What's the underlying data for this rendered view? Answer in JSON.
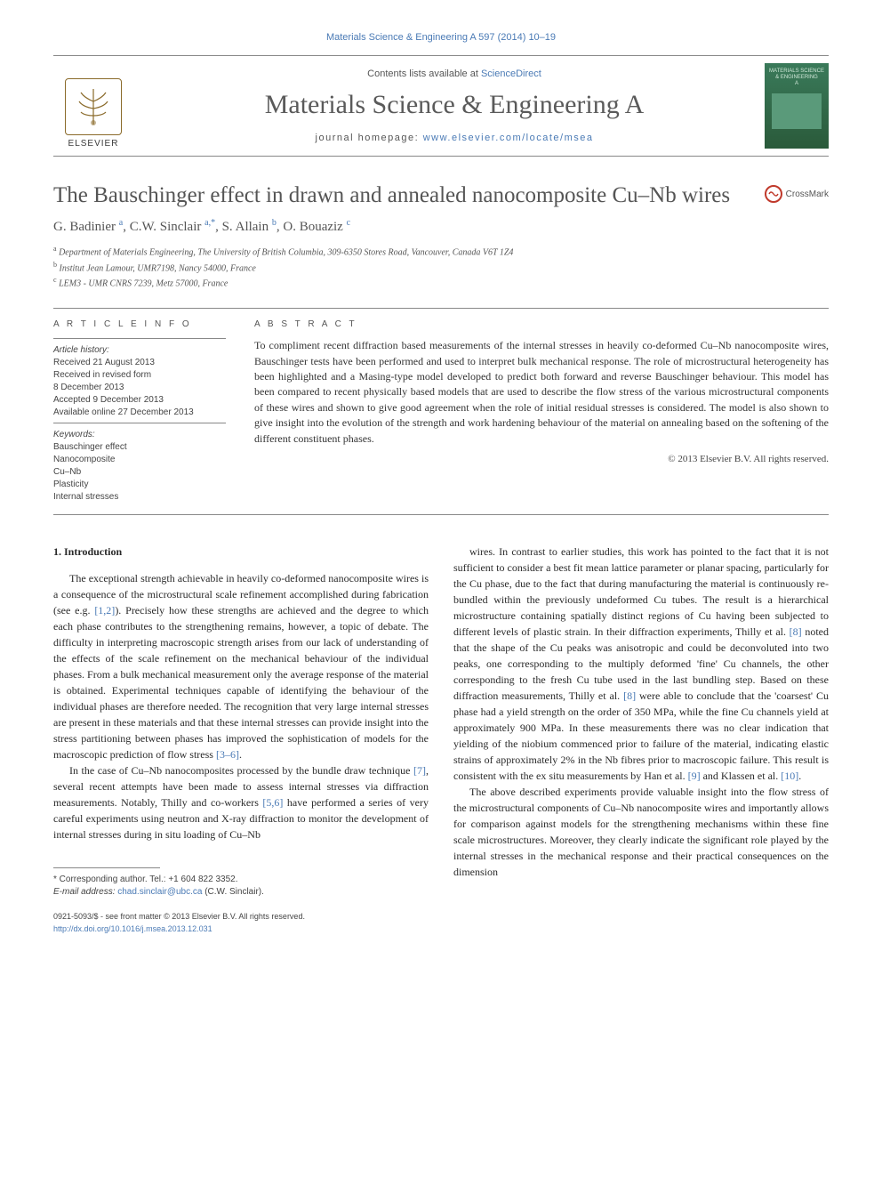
{
  "top_link": "Materials Science & Engineering A 597 (2014) 10–19",
  "header": {
    "contents_prefix": "Contents lists available at ",
    "contents_link": "ScienceDirect",
    "journal_name": "Materials Science & Engineering A",
    "homepage_prefix": "journal homepage: ",
    "homepage_link": "www.elsevier.com/locate/msea",
    "publisher": "ELSEVIER",
    "cover_text_top": "MATERIALS SCIENCE & ENGINEERING",
    "cover_text_sub": "A"
  },
  "crossmark_label": "CrossMark",
  "title": "The Bauschinger effect in drawn and annealed nanocomposite Cu–Nb wires",
  "authors_html": "G. Badinier <sup>a</sup>, C.W. Sinclair <sup>a,*</sup>, S. Allain <sup>b</sup>, O. Bouaziz <sup>c</sup>",
  "affiliations": [
    {
      "sup": "a",
      "text": "Department of Materials Engineering, The University of British Columbia, 309-6350 Stores Road, Vancouver, Canada V6T 1Z4"
    },
    {
      "sup": "b",
      "text": "Institut Jean Lamour, UMR7198, Nancy 54000, France"
    },
    {
      "sup": "c",
      "text": "LEM3 - UMR CNRS 7239, Metz 57000, France"
    }
  ],
  "info": {
    "heading": "A R T I C L E   I N F O",
    "history_label": "Article history:",
    "history": [
      "Received 21 August 2013",
      "Received in revised form",
      "8 December 2013",
      "Accepted 9 December 2013",
      "Available online 27 December 2013"
    ],
    "keywords_label": "Keywords:",
    "keywords": [
      "Bauschinger effect",
      "Nanocomposite",
      "Cu–Nb",
      "Plasticity",
      "Internal stresses"
    ]
  },
  "abstract": {
    "heading": "A B S T R A C T",
    "text": "To compliment recent diffraction based measurements of the internal stresses in heavily co-deformed Cu–Nb nanocomposite wires, Bauschinger tests have been performed and used to interpret bulk mechanical response. The role of microstructural heterogeneity has been highlighted and a Masing-type model developed to predict both forward and reverse Bauschinger behaviour. This model has been compared to recent physically based models that are used to describe the flow stress of the various microstructural components of these wires and shown to give good agreement when the role of initial residual stresses is considered. The model is also shown to give insight into the evolution of the strength and work hardening behaviour of the material on annealing based on the softening of the different constituent phases.",
    "copyright": "© 2013 Elsevier B.V. All rights reserved."
  },
  "body": {
    "section_heading": "1.  Introduction",
    "col1": [
      "The exceptional strength achievable in heavily co-deformed nanocomposite wires is a consequence of the microstructural scale refinement accomplished during fabrication (see e.g. <span class=\"ref\">[1,2]</span>). Precisely how these strengths are achieved and the degree to which each phase contributes to the strengthening remains, however, a topic of debate. The difficulty in interpreting macroscopic strength arises from our lack of understanding of the effects of the scale refinement on the mechanical behaviour of the individual phases. From a bulk mechanical measurement only the average response of the material is obtained. Experimental techniques capable of identifying the behaviour of the individual phases are therefore needed. The recognition that very large internal stresses are present in these materials and that these internal stresses can provide insight into the stress partitioning between phases has improved the sophistication of models for the macroscopic prediction of flow stress <span class=\"ref\">[3–6]</span>.",
      "In the case of Cu–Nb nanocomposites processed by the bundle draw technique <span class=\"ref\">[7]</span>, several recent attempts have been made to assess internal stresses via diffraction measurements. Notably, Thilly and co-workers <span class=\"ref\">[5,6]</span> have performed a series of very careful experiments using neutron and X-ray diffraction to monitor the development of internal stresses during in situ loading of Cu–Nb"
    ],
    "col2": [
      "wires. In contrast to earlier studies, this work has pointed to the fact that it is not sufficient to consider a best fit mean lattice parameter or planar spacing, particularly for the Cu phase, due to the fact that during manufacturing the material is continuously re-bundled within the previously undeformed Cu tubes. The result is a hierarchical microstructure containing spatially distinct regions of Cu having been subjected to different levels of plastic strain. In their diffraction experiments, Thilly et al. <span class=\"ref\">[8]</span> noted that the shape of the Cu peaks was anisotropic and could be deconvoluted into two peaks, one corresponding to the multiply deformed 'fine' Cu channels, the other corresponding to the fresh Cu tube used in the last bundling step. Based on these diffraction measurements, Thilly et al. <span class=\"ref\">[8]</span> were able to conclude that the 'coarsest' Cu phase had a yield strength on the order of 350 MPa, while the fine Cu channels yield at approximately 900 MPa. In these measurements there was no clear indication that yielding of the niobium commenced prior to failure of the material, indicating elastic strains of approximately 2% in the Nb fibres prior to macroscopic failure. This result is consistent with the ex situ measurements by Han et al. <span class=\"ref\">[9]</span> and Klassen et al. <span class=\"ref\">[10]</span>.",
      "The above described experiments provide valuable insight into the flow stress of the microstructural components of Cu–Nb nanocomposite wires and importantly allows for comparison against models for the strengthening mechanisms within these fine scale microstructures. Moreover, they clearly indicate the significant role played by the internal stresses in the mechanical response and their practical consequences on the dimension"
    ]
  },
  "footnotes": {
    "corr": "* Corresponding author. Tel.: +1 604 822 3352.",
    "email_label": "E-mail address: ",
    "email": "chad.sinclair@ubc.ca",
    "email_who": " (C.W. Sinclair)."
  },
  "bottom": {
    "issn": "0921-5093/$ - see front matter © 2013 Elsevier B.V. All rights reserved.",
    "doi": "http://dx.doi.org/10.1016/j.msea.2013.12.031"
  },
  "colors": {
    "link": "#4a7ab5",
    "rule": "#888888",
    "text": "#2a2a2a",
    "cover_bg_top": "#3a7a5a",
    "cover_bg_bot": "#2a5a3a",
    "crossmark_ring": "#c0392b"
  },
  "typography": {
    "journal_name_pt": 30,
    "title_pt": 25,
    "authors_pt": 15,
    "body_pt": 12,
    "small_pt": 10
  }
}
